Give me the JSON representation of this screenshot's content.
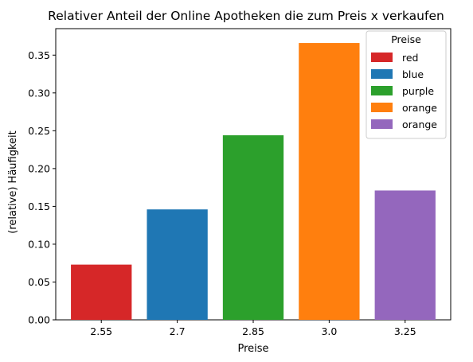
{
  "chart_data": {
    "type": "bar",
    "title": "Relativer Anteil der Online Apotheken die zum Preis x verkaufen",
    "xlabel": "Preise",
    "ylabel": "(relative) Häufigkeit",
    "categories": [
      "2.55",
      "2.7",
      "2.85",
      "3.0",
      "3.25"
    ],
    "values": [
      0.073,
      0.146,
      0.244,
      0.366,
      0.171
    ],
    "colors": [
      "#d62728",
      "#1f77b4",
      "#2ca02c",
      "#ff7f0e",
      "#9467bd"
    ],
    "ylim": [
      0,
      0.385
    ],
    "yticks": [
      0.0,
      0.05,
      0.1,
      0.15,
      0.2,
      0.25,
      0.3,
      0.35
    ],
    "ytick_labels": [
      "0.00",
      "0.05",
      "0.10",
      "0.15",
      "0.20",
      "0.25",
      "0.30",
      "0.35"
    ],
    "grid": false,
    "legend": {
      "title": "Preise",
      "position": "top-right",
      "entries": [
        {
          "label": "red",
          "color": "#d62728"
        },
        {
          "label": "blue",
          "color": "#1f77b4"
        },
        {
          "label": "purple",
          "color": "#2ca02c"
        },
        {
          "label": "orange",
          "color": "#ff7f0e"
        },
        {
          "label": "orange",
          "color": "#9467bd"
        }
      ]
    }
  }
}
